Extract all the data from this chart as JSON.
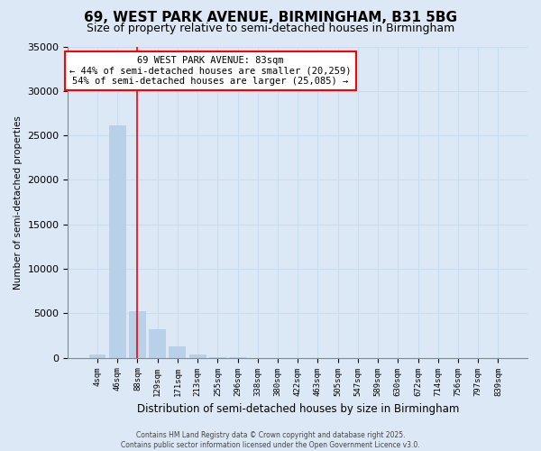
{
  "title": "69, WEST PARK AVENUE, BIRMINGHAM, B31 5BG",
  "subtitle": "Size of property relative to semi-detached houses in Birmingham",
  "xlabel": "Distribution of semi-detached houses by size in Birmingham",
  "ylabel": "Number of semi-detached properties",
  "categories": [
    "4sqm",
    "46sqm",
    "88sqm",
    "129sqm",
    "171sqm",
    "213sqm",
    "255sqm",
    "296sqm",
    "338sqm",
    "380sqm",
    "422sqm",
    "463sqm",
    "505sqm",
    "547sqm",
    "589sqm",
    "630sqm",
    "672sqm",
    "714sqm",
    "756sqm",
    "797sqm",
    "839sqm"
  ],
  "values": [
    400,
    26100,
    5200,
    3200,
    1300,
    400,
    100,
    20,
    5,
    2,
    1,
    0,
    0,
    0,
    0,
    0,
    0,
    0,
    0,
    0,
    0
  ],
  "bar_color": "#b8d0e8",
  "grid_color": "#c8ddef",
  "background_color": "#dce8f5",
  "property_line_x": 2,
  "annotation_text": "69 WEST PARK AVENUE: 83sqm\n← 44% of semi-detached houses are smaller (20,259)\n54% of semi-detached houses are larger (25,085) →",
  "ylim": [
    0,
    35000
  ],
  "yticks": [
    0,
    5000,
    10000,
    15000,
    20000,
    25000,
    30000,
    35000
  ],
  "title_fontsize": 11,
  "subtitle_fontsize": 9,
  "footer_line1": "Contains HM Land Registry data © Crown copyright and database right 2025.",
  "footer_line2": "Contains public sector information licensed under the Open Government Licence v3.0."
}
